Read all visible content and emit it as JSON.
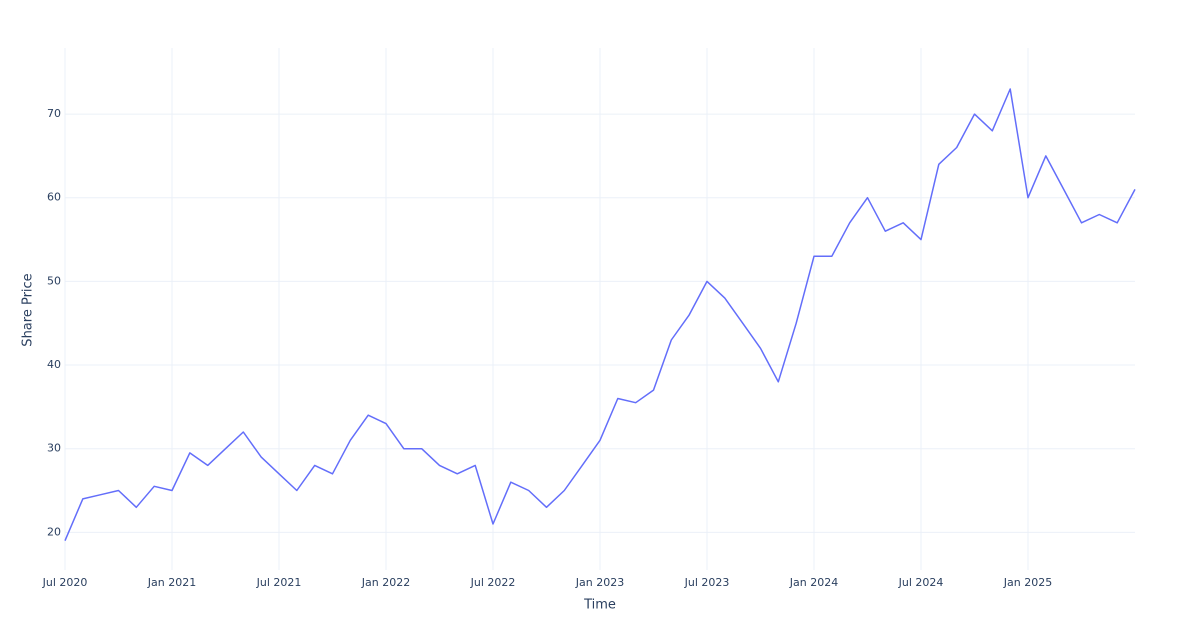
{
  "chart_data": {
    "type": "line",
    "x_label": "Time",
    "y_label": "Share Price",
    "x": [
      "2020-07",
      "2020-08",
      "2020-09",
      "2020-10",
      "2020-11",
      "2020-12",
      "2021-01",
      "2021-02",
      "2021-03",
      "2021-04",
      "2021-05",
      "2021-06",
      "2021-07",
      "2021-08",
      "2021-09",
      "2021-10",
      "2021-11",
      "2021-12",
      "2022-01",
      "2022-02",
      "2022-03",
      "2022-04",
      "2022-05",
      "2022-06",
      "2022-07",
      "2022-08",
      "2022-09",
      "2022-10",
      "2022-11",
      "2022-12",
      "2023-01",
      "2023-02",
      "2023-03",
      "2023-04",
      "2023-05",
      "2023-06",
      "2023-07",
      "2023-08",
      "2023-09",
      "2023-10",
      "2023-11",
      "2023-12",
      "2024-01",
      "2024-02",
      "2024-03",
      "2024-04",
      "2024-05",
      "2024-06",
      "2024-07",
      "2024-08",
      "2024-09",
      "2024-10",
      "2024-11",
      "2024-12",
      "2025-01",
      "2025-02",
      "2025-03",
      "2025-04",
      "2025-05",
      "2025-06",
      "2025-07"
    ],
    "series": [
      {
        "name": "Share Price",
        "color": "#636efa",
        "values": [
          19,
          24,
          24.5,
          25,
          23,
          25.5,
          25,
          29.5,
          28,
          30,
          32,
          29,
          27,
          25,
          28,
          27,
          31,
          34,
          33,
          30,
          30,
          28,
          27,
          28,
          21,
          26,
          25,
          23,
          25,
          28,
          31,
          36,
          35.5,
          37,
          43,
          46,
          50,
          48,
          45,
          42,
          38,
          45,
          53,
          53,
          57,
          60,
          56,
          57,
          55,
          64,
          66,
          70,
          68,
          73,
          60,
          65,
          61,
          57,
          58,
          57,
          61
        ]
      }
    ],
    "xlim": [
      "2020-07",
      "2025-07"
    ],
    "xticks": [
      {
        "value": "2020-07",
        "label": "Jul 2020"
      },
      {
        "value": "2021-01",
        "label": "Jan 2021"
      },
      {
        "value": "2021-07",
        "label": "Jul 2021"
      },
      {
        "value": "2022-01",
        "label": "Jan 2022"
      },
      {
        "value": "2022-07",
        "label": "Jul 2022"
      },
      {
        "value": "2023-01",
        "label": "Jan 2023"
      },
      {
        "value": "2023-07",
        "label": "Jul 2023"
      },
      {
        "value": "2024-01",
        "label": "Jan 2024"
      },
      {
        "value": "2024-07",
        "label": "Jul 2024"
      },
      {
        "value": "2025-01",
        "label": "Jan 2025"
      }
    ],
    "ylim": [
      15.5,
      77.9
    ],
    "yticks": [
      20,
      30,
      40,
      50,
      60,
      70
    ],
    "grid": true
  }
}
